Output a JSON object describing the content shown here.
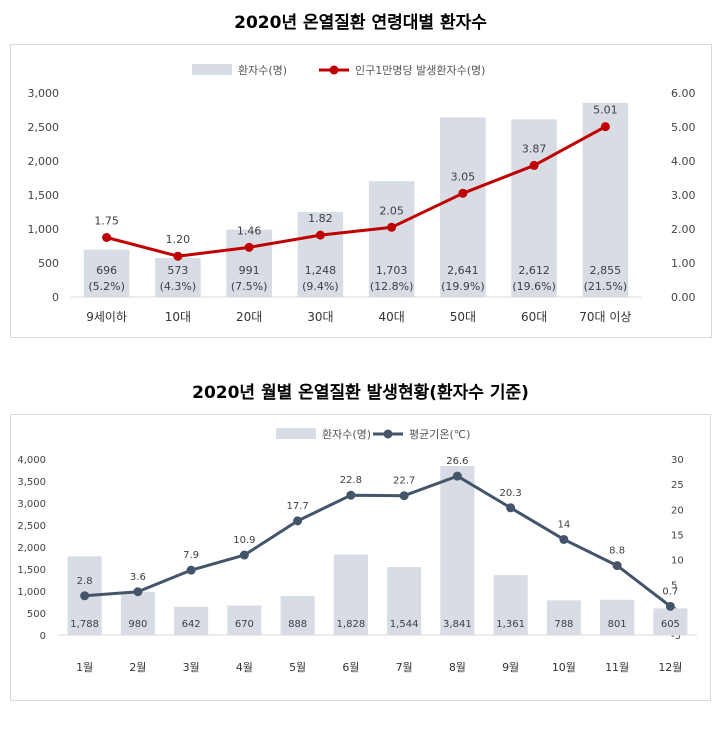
{
  "chart_data": [
    {
      "type": "bar",
      "title": "2020년 온열질환 연령대별 환자수",
      "categories": [
        "9세이하",
        "10대",
        "20대",
        "30대",
        "40대",
        "50대",
        "60대",
        "70대 이상"
      ],
      "series": [
        {
          "name": "환자수(명)",
          "type": "bar",
          "axis": "left",
          "values": [
            696,
            573,
            991,
            1248,
            1703,
            2641,
            2612,
            2855
          ],
          "labels": [
            "696",
            "573",
            "991",
            "1,248",
            "1,703",
            "2,641",
            "2,612",
            "2,855"
          ],
          "sublabels": [
            "(5.2%)",
            "(4.3%)",
            "(7.5%)",
            "(9.4%)",
            "(12.8%)",
            "(19.9%)",
            "(19.6%)",
            "(21.5%)"
          ]
        },
        {
          "name": "인구1만명당 발생환자수(명)",
          "type": "line",
          "axis": "right",
          "values": [
            1.75,
            1.2,
            1.46,
            1.82,
            2.05,
            3.05,
            3.87,
            5.01
          ],
          "labels": [
            "1.75",
            "1.20",
            "1.46",
            "1.82",
            "2.05",
            "3.05",
            "3.87",
            "5.01"
          ]
        }
      ],
      "y_left": {
        "min": 0,
        "max": 3000,
        "ticks": [
          "0",
          "500",
          "1,000",
          "1,500",
          "2,000",
          "2,500",
          "3,000"
        ]
      },
      "y_right": {
        "min": 0,
        "max": 6,
        "ticks": [
          "0.00",
          "1.00",
          "2.00",
          "3.00",
          "4.00",
          "5.00",
          "6.00"
        ]
      },
      "xlabel": "",
      "ylabel": "",
      "legend": "top-center",
      "colors": {
        "bar": "#d7dce5",
        "line": "#c00000"
      }
    },
    {
      "type": "bar",
      "title": "2020년 월별 온열질환 발생현황(환자수 기준)",
      "categories": [
        "1월",
        "2월",
        "3월",
        "4월",
        "5월",
        "6월",
        "7월",
        "8월",
        "9월",
        "10월",
        "11월",
        "12월"
      ],
      "series": [
        {
          "name": "환자수(명)",
          "type": "bar",
          "axis": "left",
          "values": [
            1788,
            980,
            642,
            670,
            888,
            1828,
            1544,
            3841,
            1361,
            788,
            801,
            605
          ],
          "labels": [
            "1,788",
            "980",
            "642",
            "670",
            "888",
            "1,828",
            "1,544",
            "3,841",
            "1,361",
            "788",
            "801",
            "605"
          ]
        },
        {
          "name": "평균기온(℃)",
          "type": "line",
          "axis": "right",
          "values": [
            2.8,
            3.6,
            7.9,
            10.9,
            17.7,
            22.8,
            22.7,
            26.6,
            20.3,
            14,
            8.8,
            0.7
          ],
          "labels": [
            "2.8",
            "3.6",
            "7.9",
            "10.9",
            "17.7",
            "22.8",
            "22.7",
            "26.6",
            "20.3",
            "14",
            "8.8",
            "0.7"
          ]
        }
      ],
      "y_left": {
        "min": 0,
        "max": 4000,
        "ticks": [
          "0",
          "500",
          "1,000",
          "1,500",
          "2,000",
          "2,500",
          "3,000",
          "3,500",
          "4,000"
        ]
      },
      "y_right": {
        "min": -5,
        "max": 30,
        "ticks": [
          "-5",
          "0",
          "5",
          "10",
          "15",
          "20",
          "25",
          "30"
        ]
      },
      "xlabel": "",
      "ylabel": "",
      "legend": "top-center",
      "colors": {
        "bar": "#d7dce5",
        "line": "#44546a"
      }
    }
  ]
}
